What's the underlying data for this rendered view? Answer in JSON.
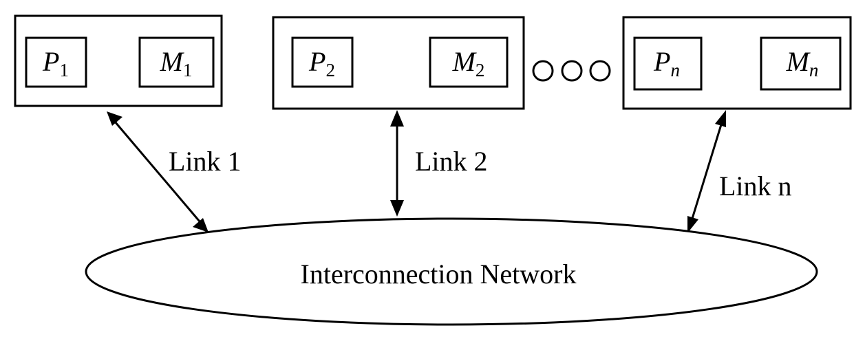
{
  "nodes": [
    {
      "processor": "P",
      "processor_sub": "1",
      "memory": "M",
      "memory_sub": "1"
    },
    {
      "processor": "P",
      "processor_sub": "2",
      "memory": "M",
      "memory_sub": "2"
    },
    {
      "processor": "P",
      "processor_sub": "n",
      "memory": "M",
      "memory_sub": "n"
    }
  ],
  "ellipsis": [
    "circle",
    "circle",
    "circle"
  ],
  "links": [
    {
      "label": "Link 1"
    },
    {
      "label": "Link 2"
    },
    {
      "label": "Link n"
    }
  ],
  "network": {
    "label": "Interconnection Network"
  }
}
